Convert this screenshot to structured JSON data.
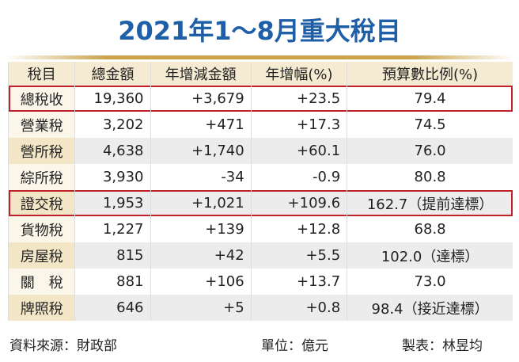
{
  "title": "2021年1～8月重大稅目",
  "table": {
    "header": [
      "稅目",
      "總金額",
      "年增減金額",
      "年增幅(%)",
      "預算數比例(%)"
    ],
    "rows": [
      [
        "總稅收",
        "19,360",
        "+3,679",
        "+23.5",
        "79.4"
      ],
      [
        "營業稅",
        "3,202",
        "+471",
        "+17.3",
        "74.5"
      ],
      [
        "營所稅",
        "4,638",
        "+1,740",
        "+60.1",
        "76.0"
      ],
      [
        "綜所稅",
        "3,930",
        "-34",
        "-0.9",
        "80.8"
      ],
      [
        "證交稅",
        "1,953",
        "+1,021",
        "+109.6",
        "162.7（提前達標）"
      ],
      [
        "貨物稅",
        "1,227",
        "+139",
        "+12.8",
        "68.8"
      ],
      [
        "房屋稅",
        "815",
        "+42",
        "+5.5",
        "102.0（達標）"
      ],
      [
        "關　稅",
        "881",
        "+106",
        "+13.7",
        "73.0"
      ],
      [
        "牌照稅",
        "646",
        "+5",
        "+0.8",
        "98.4（接近達標）"
      ]
    ]
  },
  "footer": {
    "source": "資料來源：財政部",
    "unit": "單位：億元",
    "author": "製表：林昱均"
  }
}
